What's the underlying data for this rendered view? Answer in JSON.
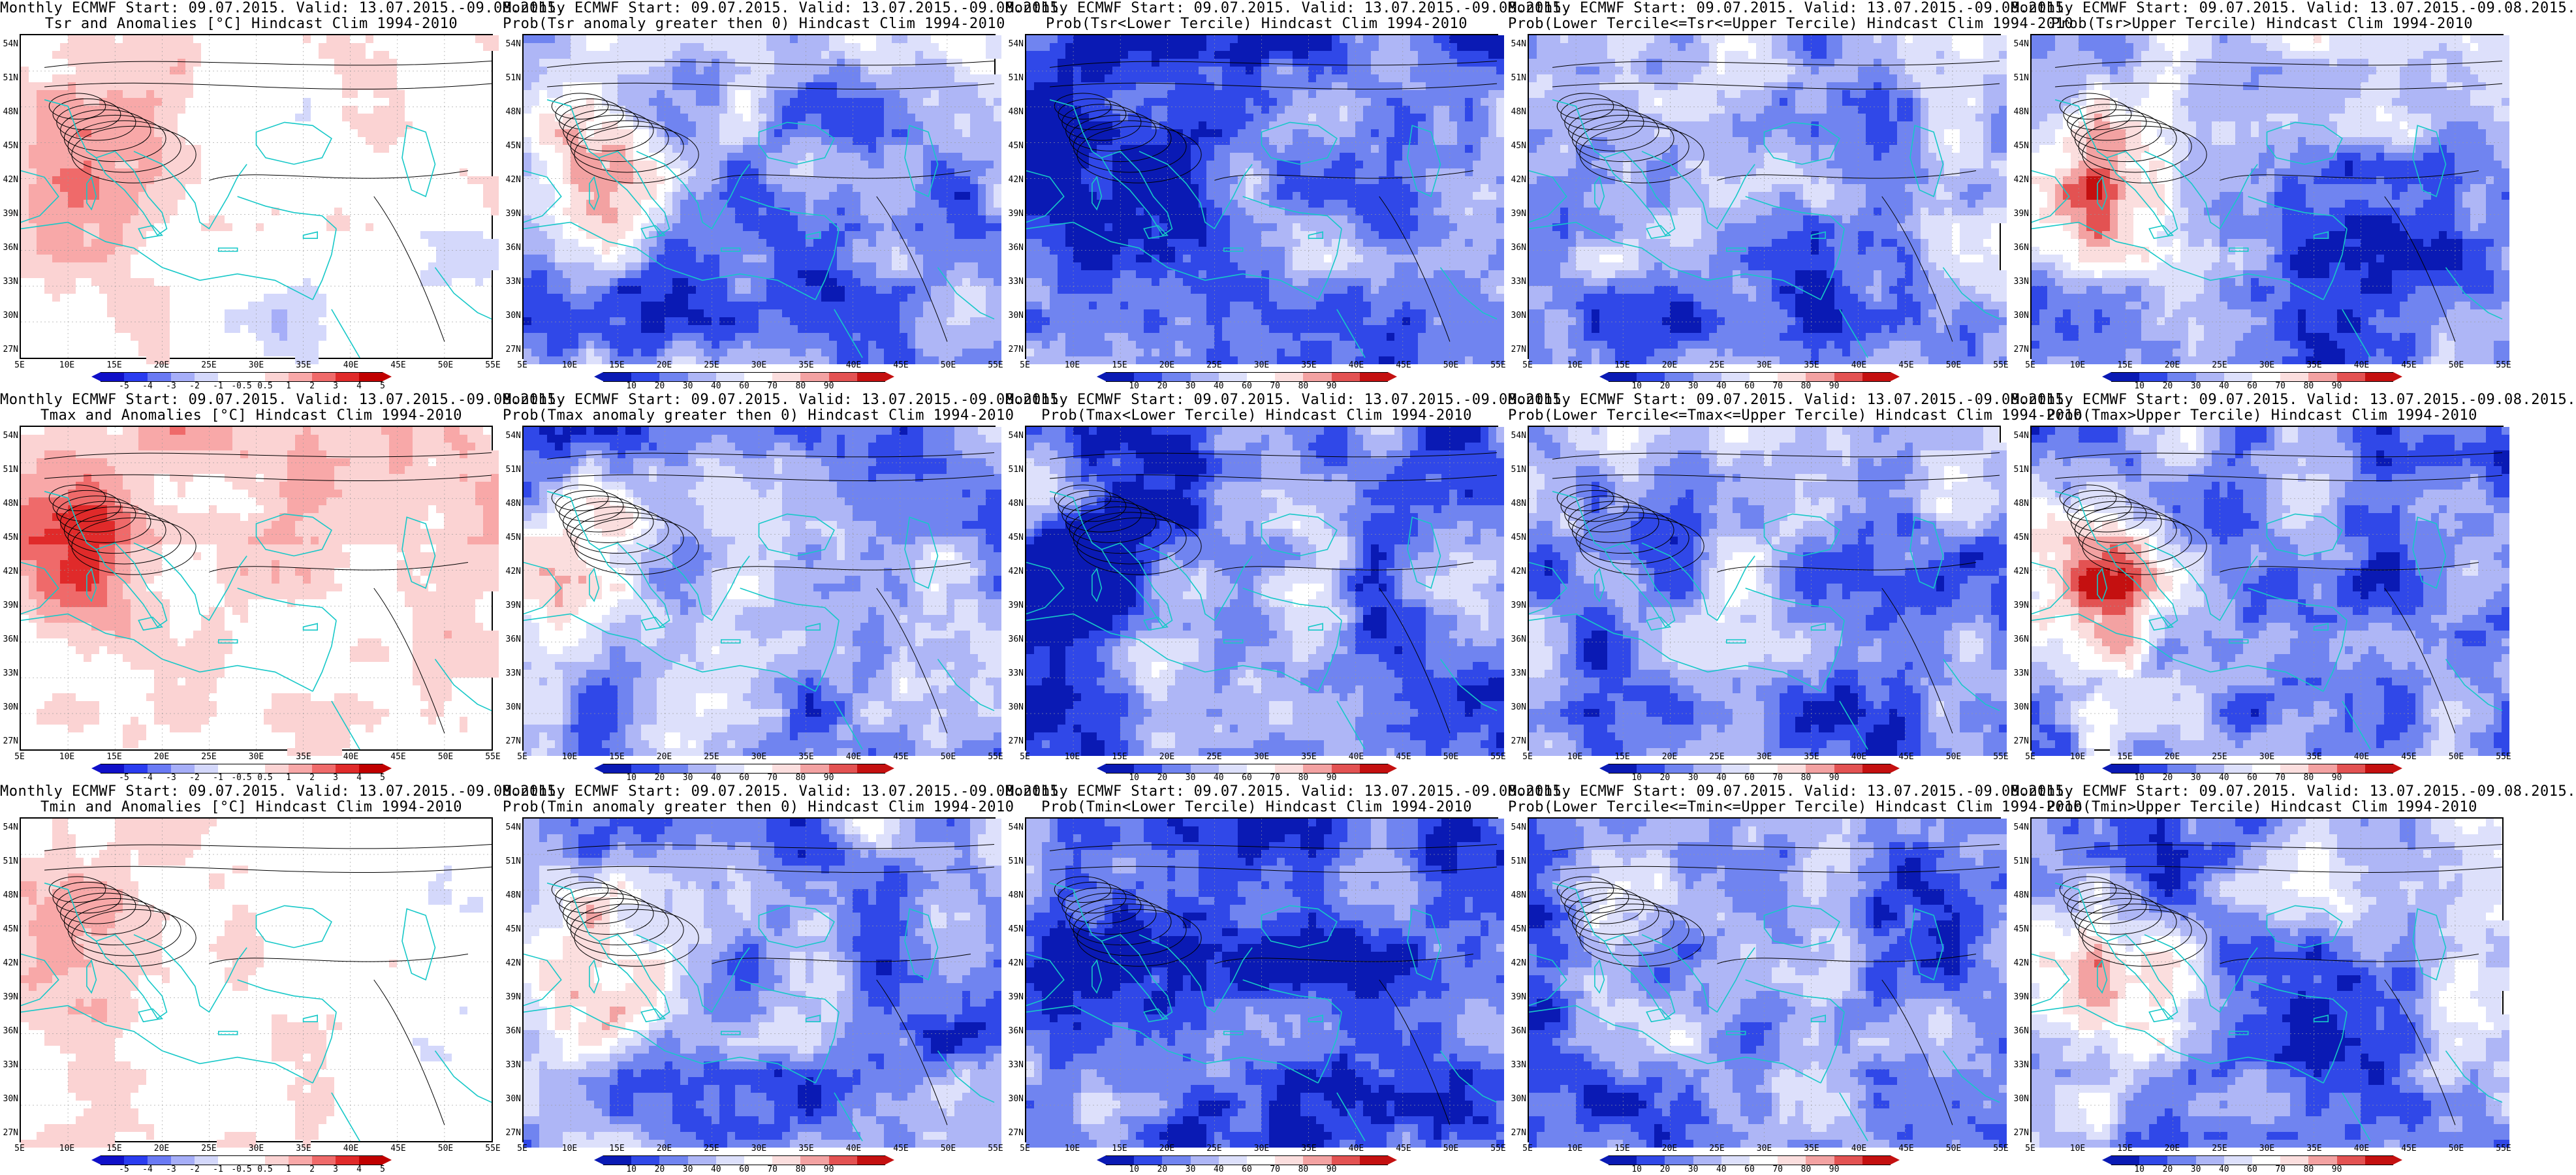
{
  "colors": {
    "anom": [
      "#1010c8",
      "#2a3cf0",
      "#6a7af4",
      "#a6aef8",
      "#d4d8fb",
      "#ffffff",
      "#ffffff",
      "#fbd3d3",
      "#f8a8a8",
      "#ef6a6a",
      "#e02a2a",
      "#c00000"
    ],
    "prob": [
      "#0a1ab4",
      "#3048e8",
      "#7084f0",
      "#aeb6f6",
      "#dde0fb",
      "#ffffff",
      "#fbdede",
      "#f3a2a2",
      "#e35252",
      "#c41010"
    ],
    "coast": "#17c8c8"
  },
  "lat_labels": [
    "54N",
    "51N",
    "48N",
    "45N",
    "42N",
    "39N",
    "36N",
    "33N",
    "30N",
    "27N"
  ],
  "lon_labels": [
    "5E",
    "10E",
    "15E",
    "20E",
    "25E",
    "30E",
    "35E",
    "40E",
    "45E",
    "50E",
    "55E"
  ],
  "anom_ticks": [
    "-5",
    "-4",
    "-3",
    "-2",
    "-1",
    "-0.5",
    "0.5",
    "1",
    "2",
    "3",
    "4",
    "5"
  ],
  "prob_ticks": [
    "10",
    "20",
    "30",
    "40",
    "60",
    "70",
    "80",
    "90"
  ],
  "panels": [
    {
      "line1": "Monthly ECMWF Start: 09.07.2015. Valid: 13.07.2015.-09.08.2015.",
      "line2": "Tsr and Anomalies [°C] Hindcast Clim 1994-2010",
      "kind": "anom",
      "pattern": "tsr_anom"
    },
    {
      "line1": "Monthly ECMWF Start: 09.07.2015. Valid: 13.07.2015.-09.08.2015.",
      "line2": "Prob(Tsr anomaly greater then 0) Hindcast Clim 1994-2010",
      "kind": "prob",
      "pattern": "upper"
    },
    {
      "line1": "Monthly ECMWF Start: 09.07.2015. Valid: 13.07.2015.-09.08.2015.",
      "line2": "Prob(Tsr<Lower Tercile) Hindcast Clim 1994-2010",
      "kind": "prob",
      "pattern": "lower"
    },
    {
      "line1": "Monthly ECMWF Start: 09.07.2015. Valid: 13.07.2015.-09.08.2015.",
      "line2": "Prob(Lower Tercile<=Tsr<=Upper Tercile) Hindcast Clim 1994-2010",
      "kind": "prob",
      "pattern": "middle"
    },
    {
      "line1": "Monthly ECMWF Start: 09.07.2015. Valid: 13.07.2015.-09.08.2015.",
      "line2": "Prob(Tsr>Upper Tercile) Hindcast Clim 1994-2010",
      "kind": "prob",
      "pattern": "upper"
    },
    {
      "line1": "Monthly ECMWF Start: 09.07.2015. Valid: 13.07.2015.-09.08.2015.",
      "line2": "Tmax and Anomalies [°C] Hindcast Clim 1994-2010",
      "kind": "anom",
      "pattern": "tmax_anom"
    },
    {
      "line1": "Monthly ECMWF Start: 09.07.2015. Valid: 13.07.2015.-09.08.2015.",
      "line2": "Prob(Tmax anomaly greater then 0) Hindcast Clim 1994-2010",
      "kind": "prob",
      "pattern": "upper"
    },
    {
      "line1": "Monthly ECMWF Start: 09.07.2015. Valid: 13.07.2015.-09.08.2015.",
      "line2": "Prob(Tmax<Lower Tercile) Hindcast Clim 1994-2010",
      "kind": "prob",
      "pattern": "lower"
    },
    {
      "line1": "Monthly ECMWF Start: 09.07.2015. Valid: 13.07.2015.-09.08.2015.",
      "line2": "Prob(Lower Tercile<=Tmax<=Upper Tercile) Hindcast Clim 1994-2010",
      "kind": "prob",
      "pattern": "middle"
    },
    {
      "line1": "Monthly ECMWF Start: 09.07.2015. Valid: 13.07.2015.-09.08.2015.",
      "line2": "Prob(Tmax>Upper Tercile) Hindcast Clim 1994-2010",
      "kind": "prob",
      "pattern": "upper"
    },
    {
      "line1": "Monthly ECMWF Start: 09.07.2015. Valid: 13.07.2015.-09.08.2015.",
      "line2": "Tmin and Anomalies [°C] Hindcast Clim 1994-2010",
      "kind": "anom",
      "pattern": "tmin_anom"
    },
    {
      "line1": "Monthly ECMWF Start: 09.07.2015. Valid: 13.07.2015.-09.08.2015.",
      "line2": "Prob(Tmin anomaly greater then 0) Hindcast Clim 1994-2010",
      "kind": "prob",
      "pattern": "upper"
    },
    {
      "line1": "Monthly ECMWF Start: 09.07.2015. Valid: 13.07.2015.-09.08.2015.",
      "line2": "Prob(Tmin<Lower Tercile) Hindcast Clim 1994-2010",
      "kind": "prob",
      "pattern": "lower"
    },
    {
      "line1": "Monthly ECMWF Start: 09.07.2015. Valid: 13.07.2015.-09.08.2015.",
      "line2": "Prob(Lower Tercile<=Tmin<=Upper Tercile) Hindcast Clim 1994-2010",
      "kind": "prob",
      "pattern": "middle"
    },
    {
      "line1": "Monthly ECMWF Start: 09.07.2015. Valid: 13.07.2015.-09.08.2015.",
      "line2": "Prob(Tmin>Upper Tercile) Hindcast Clim 1994-2010",
      "kind": "prob",
      "pattern": "upper"
    }
  ]
}
